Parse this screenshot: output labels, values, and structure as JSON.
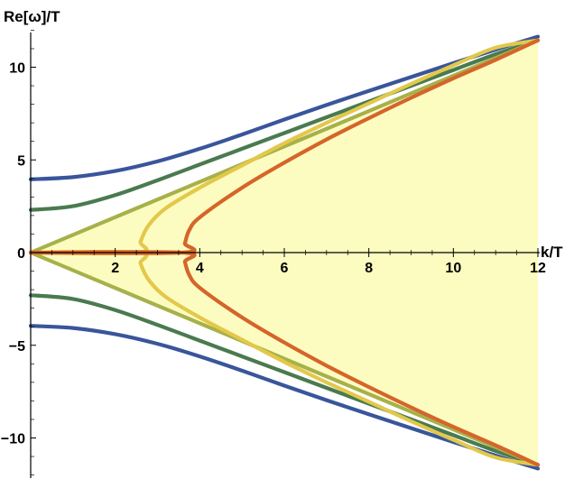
{
  "chart_data": {
    "type": "line",
    "xlabel": "k/T",
    "ylabel": "Re[ω]/T",
    "xlim": [
      0,
      12
    ],
    "ylim": [
      -12,
      12
    ],
    "x_ticks": [
      2,
      4,
      6,
      8,
      10,
      12
    ],
    "y_ticks": [
      -10,
      -5,
      0,
      5,
      10
    ],
    "grid": false,
    "shaded_region": {
      "description_color": "#fdfcc0",
      "bounds": "between y = x and y = -x",
      "x": [
        0,
        12
      ]
    },
    "series": [
      {
        "color": "#39559b",
        "x": [
          0,
          1,
          2,
          3,
          4,
          5,
          6,
          7,
          8,
          9,
          10,
          11,
          12
        ],
        "y": [
          3.95,
          4.07,
          4.4,
          4.92,
          5.6,
          6.37,
          7.18,
          7.96,
          8.72,
          9.47,
          10.22,
          10.95,
          11.65
        ],
        "mirror_negative": true
      },
      {
        "color": "#4a7a4f",
        "x": [
          0,
          1,
          2,
          3,
          4,
          5,
          6,
          7,
          8,
          9,
          10,
          11,
          12
        ],
        "y": [
          2.3,
          2.5,
          3.1,
          3.9,
          4.75,
          5.6,
          6.45,
          7.3,
          8.15,
          9.0,
          9.85,
          10.7,
          11.45
        ],
        "mirror_negative": true
      },
      {
        "color": "#a7b14a",
        "x": [
          0,
          12
        ],
        "y": [
          0,
          11.45
        ],
        "mirror_negative": true
      },
      {
        "color": "#e3c84a",
        "x": [
          0,
          2.55,
          2.6,
          2.8,
          3.2,
          4,
          5,
          6,
          7,
          8,
          9,
          10,
          11,
          12
        ],
        "y": [
          0,
          0,
          0.6,
          1.5,
          2.4,
          3.5,
          4.7,
          5.9,
          7.0,
          8.05,
          9.1,
          10.1,
          11.05,
          11.45
        ],
        "mirror_negative": true
      },
      {
        "color": "#d5652a",
        "x": [
          0,
          3.6,
          3.65,
          3.75,
          4,
          5,
          6,
          7,
          8,
          9,
          10,
          11,
          12
        ],
        "y": [
          0,
          0,
          0.5,
          1.2,
          1.9,
          3.5,
          4.85,
          6.1,
          7.25,
          8.35,
          9.4,
          10.4,
          11.45
        ],
        "mirror_negative": true
      }
    ]
  }
}
